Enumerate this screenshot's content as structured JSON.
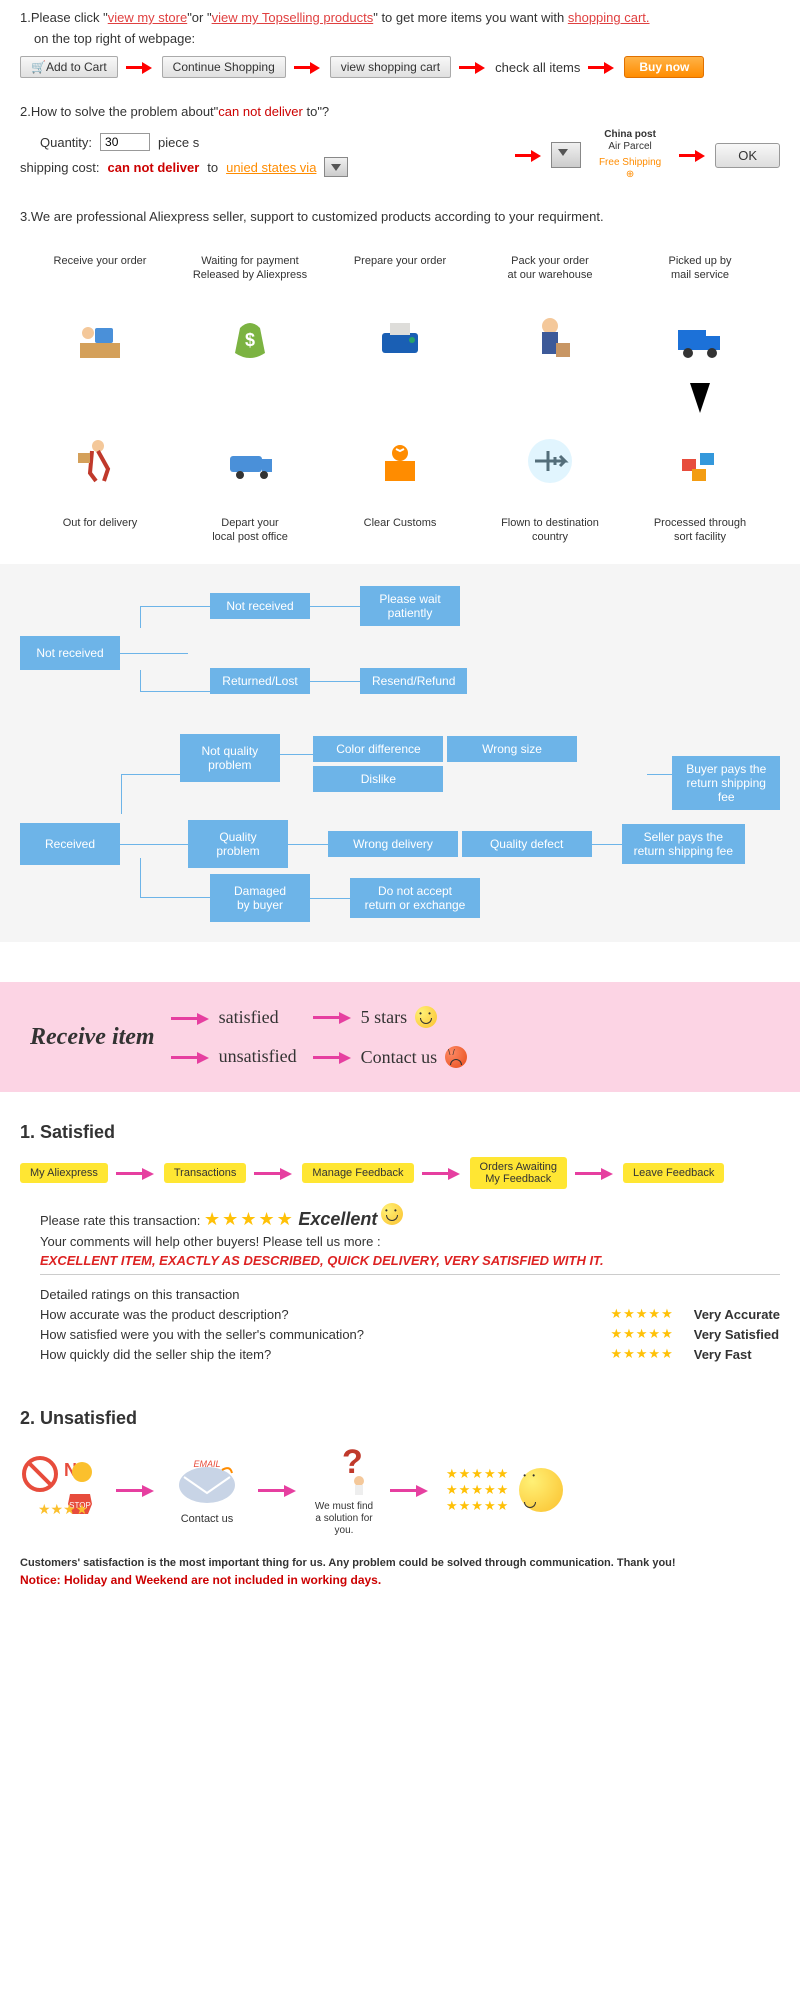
{
  "colors": {
    "link_red": "#e04040",
    "link_orange": "#ff8c00",
    "flow_blue": "#6db4e8",
    "pink_bg": "#fcd4e4",
    "yellow_pill": "#ffe633",
    "arrow_red": "#ff0000",
    "arrow_pink": "#e63fa0",
    "star": "#ffc107"
  },
  "step1": {
    "prefix": "1.Please click \"",
    "link1": "view my store",
    "mid": "\"or \"",
    "link2": "view my Topselling products",
    "suffix": "\" to get more items you want with ",
    "link3": "shopping cart.",
    "sub": "on the top right of webpage:",
    "buttons": {
      "add": "Add to Cart",
      "continue": "Continue Shopping",
      "viewcart": "view shopping cart",
      "checkall": "check all items",
      "buynow": "Buy now"
    }
  },
  "step2": {
    "line": "2.How to solve the problem about\"",
    "redtext": "can not deliver",
    "suffix": " to\"?",
    "qty_label": "Quantity:",
    "qty_val": "30",
    "pieces": "piece s",
    "ship_label": "shipping cost:",
    "ship_red": "can not deliver",
    "to": " to ",
    "dest": "unied states via",
    "china_post": "China post",
    "air_parcel": "Air Parcel",
    "free_ship": "Free Shipping",
    "ok": "OK"
  },
  "step3": {
    "text": "3.We are professional Aliexpress seller, support to customized products according to your requirment."
  },
  "process_top": [
    "Receive your order",
    "Waiting for payment\nReleased by Aliexpress",
    "Prepare your order",
    "Pack your order\nat our warehouse",
    "Picked up by\nmail service"
  ],
  "process_bottom": [
    "Out for delivery",
    "Depart your\nlocal post office",
    "Clear Customs",
    "Flown to destination\ncountry",
    "Processed through\nsort facility"
  ],
  "flowchart": {
    "not_received": "Not received",
    "nr_child1": "Not received",
    "nr_out1": "Please wait\npatiently",
    "nr_child2": "Returned/Lost",
    "nr_out2": "Resend/Refund",
    "received": "Received",
    "r_child1": "Not quality\nproblem",
    "r_c1_out": [
      "Color difference",
      "Wrong size",
      "Dislike"
    ],
    "r_c1_result": "Buyer pays the\nreturn shipping fee",
    "r_child2": "Quality\nproblem",
    "r_c2_out": [
      "Wrong delivery",
      "Quality defect"
    ],
    "r_c2_result": "Seller pays the\nreturn shipping fee",
    "r_child3": "Damaged\nby buyer",
    "r_c3_out": "Do not accept\nreturn or exchange"
  },
  "pink": {
    "title": "Receive item",
    "sat": "satisfied",
    "unsat": "unsatisfied",
    "stars": "5 stars",
    "contact": "Contact us"
  },
  "satisfied": {
    "heading": "1.  Satisfied",
    "pills": [
      "My Aliexpress",
      "Transactions",
      "Manage Feedback",
      "Orders Awaiting\nMy Feedback",
      "Leave Feedback"
    ],
    "rate_label": "Please rate this transaction:",
    "excellent": "Excellent",
    "comments_label": "Your comments will help other buyers! Please tell us more :",
    "comment": "EXCELLENT ITEM, EXACTLY AS DESCRIBED, QUICK DELIVERY, VERY SATISFIED WITH IT.",
    "detail_heading": "Detailed ratings on this transaction",
    "q1": "How accurate was the product description?",
    "q2": "How satisfied were you with the seller's communication?",
    "q3": "How quickly did the seller ship the item?",
    "a1": "Very Accurate",
    "a2": "Very Satisfied",
    "a3": "Very Fast"
  },
  "unsatisfied": {
    "heading": "2. Unsatisfied",
    "no": "N",
    "contact": "Contact us",
    "solution": "We must find\na solution for\nyou.",
    "footer1": "Customers' satisfaction is the most important thing for us. Any problem could be solved through communication. Thank you!",
    "footer2": "Notice: Holiday and Weekend are not included in working days."
  }
}
